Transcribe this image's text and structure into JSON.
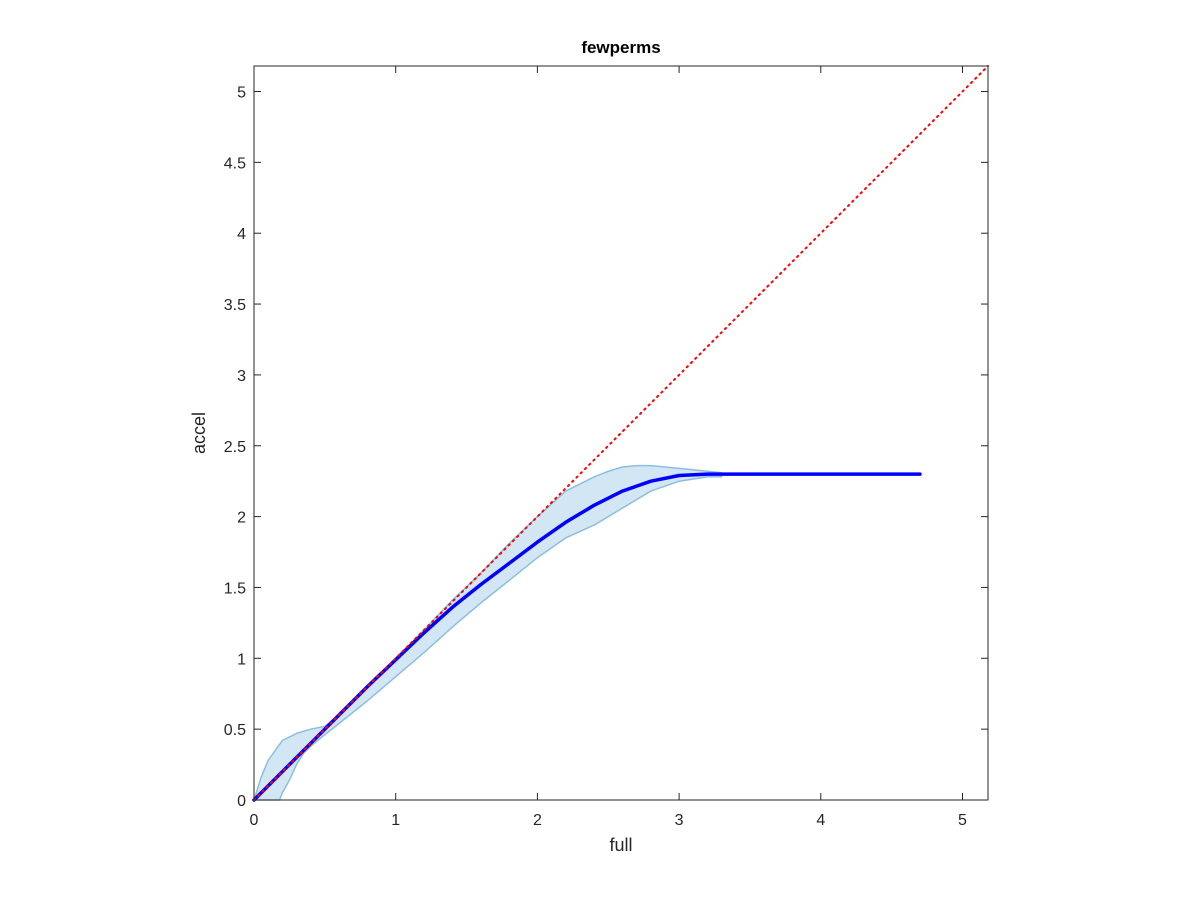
{
  "chart_data": {
    "type": "line",
    "title": "fewperms",
    "xlabel": "full",
    "ylabel": "accel",
    "xlim": [
      0,
      5.18
    ],
    "ylim": [
      0,
      5.18
    ],
    "xticks": [
      0,
      1,
      2,
      3,
      4,
      5
    ],
    "yticks": [
      0,
      0.5,
      1,
      1.5,
      2,
      2.5,
      3,
      3.5,
      4,
      4.5,
      5
    ],
    "xtick_labels": [
      "0",
      "1",
      "2",
      "3",
      "4",
      "5"
    ],
    "ytick_labels": [
      "0",
      "0.5",
      "1",
      "1.5",
      "2",
      "2.5",
      "3",
      "3.5",
      "4",
      "4.5",
      "5"
    ],
    "grid": false,
    "box": true,
    "series": [
      {
        "kind": "reference-line",
        "style": "dotted",
        "color": "#ff0000",
        "x": [
          0,
          5.18
        ],
        "y": [
          0,
          5.18
        ]
      },
      {
        "kind": "band",
        "fill": "#d3e6f3",
        "stroke": "#8cbedf",
        "x_upper": [
          0,
          0.05,
          0.1,
          0.2,
          0.3,
          0.4,
          0.5,
          0.6,
          0.8,
          1.0,
          1.2,
          1.4,
          1.6,
          1.8,
          2.0,
          2.2,
          2.4,
          2.5,
          2.6,
          2.7,
          2.8,
          2.9,
          3.0,
          3.1,
          3.2,
          3.3
        ],
        "y_upper": [
          0,
          0.16,
          0.28,
          0.42,
          0.47,
          0.5,
          0.52,
          0.6,
          0.8,
          1.0,
          1.2,
          1.41,
          1.6,
          1.81,
          2.0,
          2.18,
          2.28,
          2.32,
          2.35,
          2.36,
          2.36,
          2.35,
          2.34,
          2.33,
          2.32,
          2.31
        ],
        "x_lower": [
          0.18,
          0.2,
          0.25,
          0.3,
          0.35,
          0.4,
          0.5,
          0.6,
          0.8,
          1.0,
          1.2,
          1.4,
          1.6,
          1.8,
          2.0,
          2.2,
          2.4,
          2.6,
          2.8,
          3.0,
          3.2,
          3.3
        ],
        "y_lower": [
          0,
          0.05,
          0.14,
          0.25,
          0.33,
          0.38,
          0.46,
          0.54,
          0.7,
          0.87,
          1.04,
          1.22,
          1.39,
          1.55,
          1.71,
          1.85,
          1.94,
          2.06,
          2.18,
          2.25,
          2.28,
          2.28
        ]
      },
      {
        "kind": "mean-line",
        "color": "#0000ff",
        "x": [
          0,
          0.2,
          0.4,
          0.6,
          0.8,
          1.0,
          1.2,
          1.4,
          1.6,
          1.8,
          2.0,
          2.2,
          2.4,
          2.6,
          2.8,
          3.0,
          3.2,
          3.5,
          4.0,
          4.5,
          4.7
        ],
        "y": [
          0,
          0.2,
          0.4,
          0.6,
          0.8,
          0.99,
          1.18,
          1.36,
          1.52,
          1.67,
          1.82,
          1.96,
          2.08,
          2.18,
          2.25,
          2.29,
          2.3,
          2.3,
          2.3,
          2.3,
          2.3
        ]
      }
    ]
  }
}
